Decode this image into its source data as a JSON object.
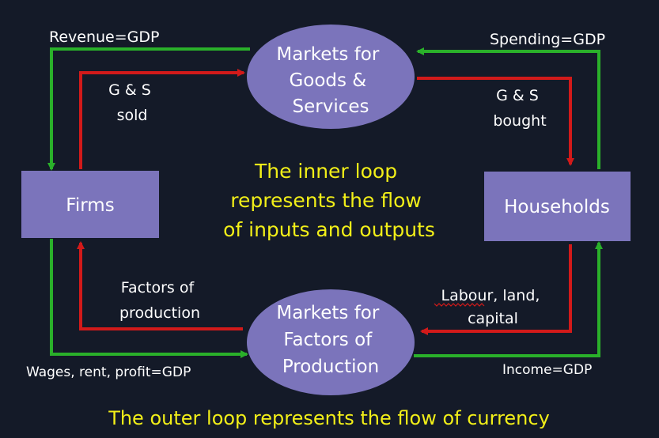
{
  "colors": {
    "background": "#141a28",
    "node_fill": "#7b74bb",
    "inner_loop": "#d21a1a",
    "outer_loop": "#2ab02a",
    "caption": "#f2ef18",
    "text": "#ffffff"
  },
  "nodes": {
    "goods_market": [
      "Markets for",
      "Goods &",
      "Services"
    ],
    "factor_market": [
      "Markets for",
      "Factors of",
      "Production"
    ],
    "firms": "Firms",
    "households": "Households"
  },
  "flows": {
    "revenue": "Revenue=GDP",
    "spending": "Spending=GDP",
    "gs_sold": [
      "G & S",
      "sold"
    ],
    "gs_bought": [
      "G & S",
      "bought"
    ],
    "factors_of_production": [
      "Factors of",
      "production"
    ],
    "labour": [
      "Labour, land,",
      "capital"
    ],
    "wages": "Wages, rent, profit=GDP",
    "income": "Income=GDP"
  },
  "captions": {
    "inner": [
      "The inner loop",
      "represents the flow",
      "of inputs and outputs"
    ],
    "outer": "The outer loop represents the flow of currency"
  }
}
